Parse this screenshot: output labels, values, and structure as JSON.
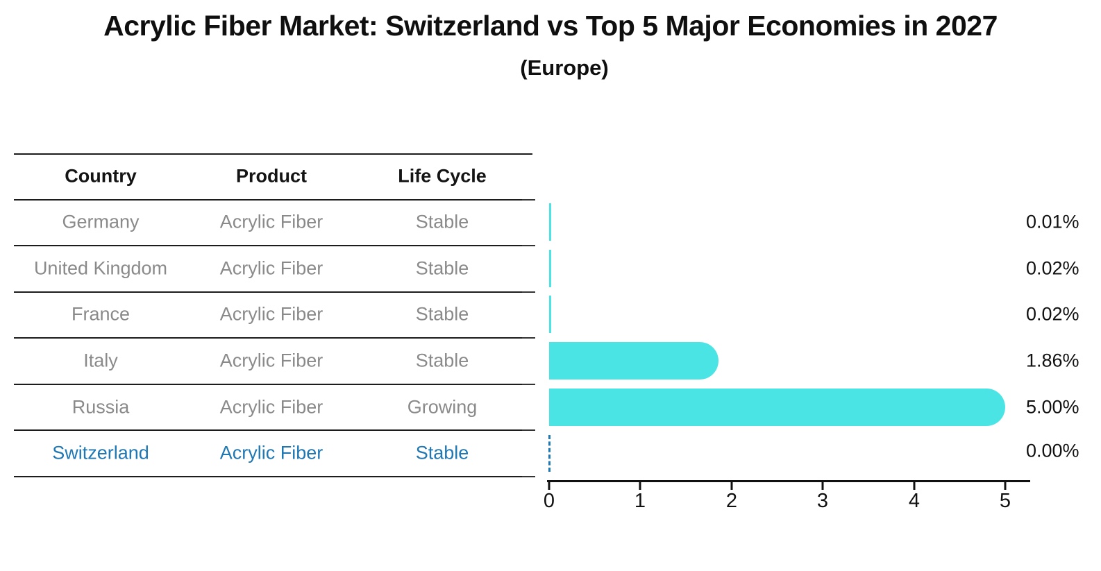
{
  "title": "Acrylic Fiber Market: Switzerland vs Top 5 Major Economies in 2027",
  "subtitle": "(Europe)",
  "table": {
    "headers": [
      "Country",
      "Product",
      "Life Cycle"
    ],
    "rows": [
      {
        "country": "Germany",
        "product": "Acrylic Fiber",
        "life_cycle": "Stable",
        "highlighted": false
      },
      {
        "country": "United Kingdom",
        "product": "Acrylic Fiber",
        "life_cycle": "Stable",
        "highlighted": false
      },
      {
        "country": "France",
        "product": "Acrylic Fiber",
        "life_cycle": "Stable",
        "highlighted": false
      },
      {
        "country": "Italy",
        "product": "Acrylic Fiber",
        "life_cycle": "Stable",
        "highlighted": false
      },
      {
        "country": "Russia",
        "product": "Acrylic Fiber",
        "life_cycle": "Growing",
        "highlighted": false
      },
      {
        "country": "Switzerland",
        "product": "Acrylic Fiber",
        "life_cycle": "Stable",
        "highlighted": true
      }
    ]
  },
  "chart_data": {
    "type": "bar",
    "orientation": "horizontal",
    "title": "Acrylic Fiber Market: Switzerland vs Top 5 Major Economies in 2027",
    "subtitle": "(Europe)",
    "categories": [
      "Germany",
      "United Kingdom",
      "France",
      "Italy",
      "Russia",
      "Switzerland"
    ],
    "values": [
      0.01,
      0.02,
      0.02,
      1.86,
      5.0,
      0.0
    ],
    "value_labels": [
      "0.01%",
      "0.02%",
      "0.02%",
      "1.86%",
      "5.00%",
      "0.00%"
    ],
    "xlabel": "",
    "ylabel": "",
    "xlim": [
      0,
      5.3
    ],
    "xticks": [
      "0",
      "1",
      "2",
      "3",
      "4",
      "5"
    ],
    "grid": false,
    "legend": "none",
    "highlight_category": "Switzerland",
    "highlight_style": "dashed zero-value marker, blue text row"
  },
  "colors": {
    "bar": "#4AE4E4",
    "highlight": "#1F77B4",
    "muted_text": "#8A8A8A",
    "text": "#111111",
    "rule_lines": "#1C1C1C"
  }
}
